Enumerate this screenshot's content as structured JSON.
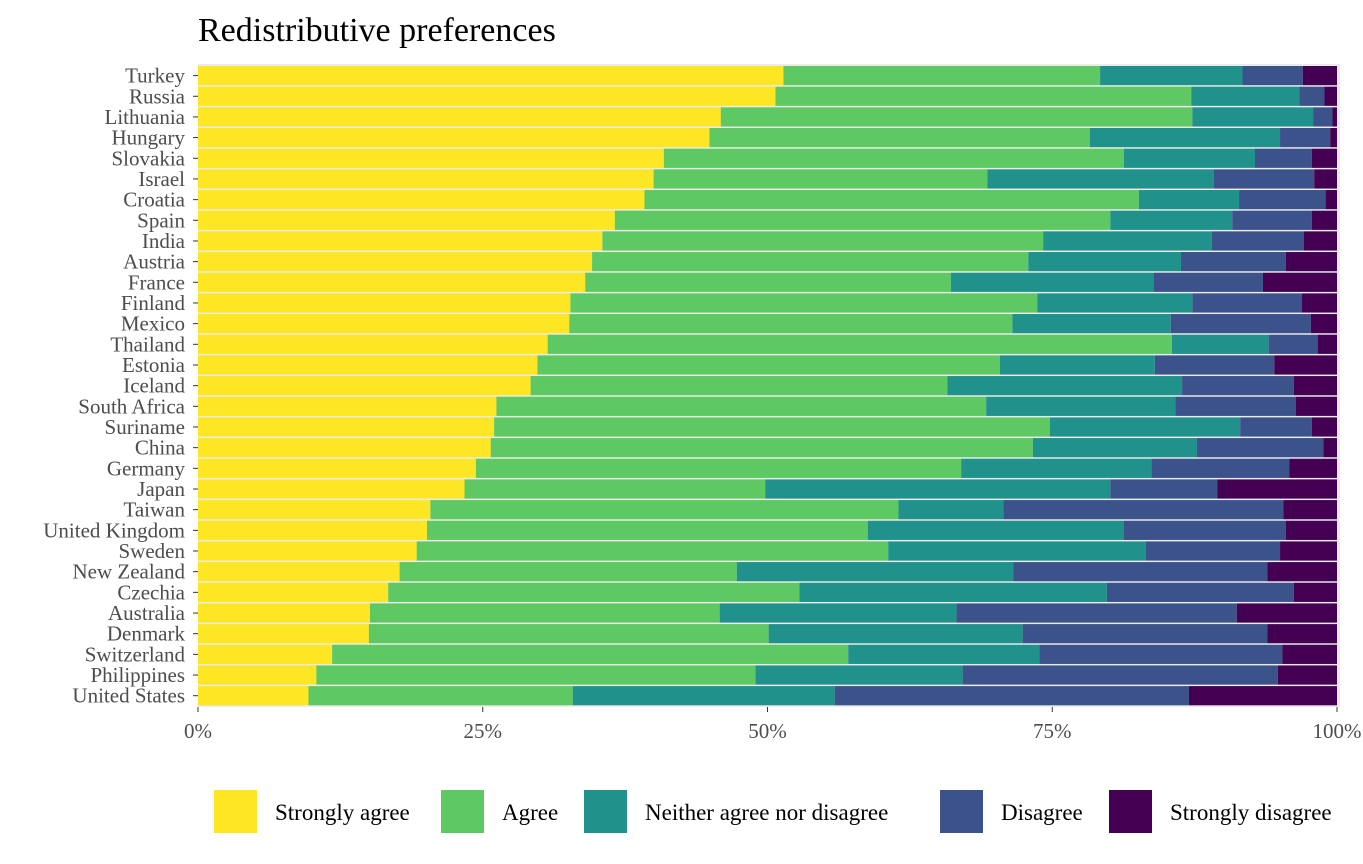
{
  "chart_data": {
    "type": "bar",
    "orientation": "horizontal",
    "stacked": true,
    "normalized": true,
    "title": "Redistributive preferences",
    "xlabel": "",
    "ylabel": "",
    "xlim": [
      0,
      1
    ],
    "x_ticks": [
      {
        "value": 0,
        "label": "0%"
      },
      {
        "value": 0.25,
        "label": "25%"
      },
      {
        "value": 0.5,
        "label": "50%"
      },
      {
        "value": 0.75,
        "label": "75%"
      },
      {
        "value": 1,
        "label": "100%"
      }
    ],
    "legend_position": "bottom",
    "categories": [
      "Turkey",
      "Russia",
      "Lithuania",
      "Hungary",
      "Slovakia",
      "Israel",
      "Croatia",
      "Spain",
      "India",
      "Austria",
      "France",
      "Finland",
      "Mexico",
      "Thailand",
      "Estonia",
      "Iceland",
      "South Africa",
      "Suriname",
      "China",
      "Germany",
      "Japan",
      "Taiwan",
      "United Kingdom",
      "Sweden",
      "New Zealand",
      "Czechia",
      "Australia",
      "Denmark",
      "Switzerland",
      "Philippines",
      "United States"
    ],
    "series": [
      {
        "name": "Strongly agree",
        "color": "#FDE725",
        "values": [
          51.4,
          50.7,
          45.9,
          44.9,
          40.9,
          40.0,
          39.2,
          36.6,
          35.5,
          34.6,
          34.0,
          32.7,
          32.6,
          30.7,
          29.8,
          29.2,
          26.2,
          26.0,
          25.7,
          24.4,
          23.4,
          20.4,
          20.1,
          19.2,
          17.7,
          16.7,
          15.1,
          15.0,
          11.8,
          10.4,
          9.7
        ]
      },
      {
        "name": "Agree",
        "color": "#5EC962",
        "values": [
          27.8,
          36.5,
          41.4,
          33.4,
          40.4,
          29.3,
          43.4,
          43.5,
          38.7,
          38.3,
          32.1,
          41.0,
          38.9,
          54.8,
          40.6,
          36.6,
          43.0,
          48.8,
          47.6,
          42.6,
          26.4,
          41.1,
          38.7,
          41.4,
          29.6,
          36.1,
          30.7,
          35.1,
          45.4,
          38.6,
          23.2
        ]
      },
      {
        "name": "Neither agree nor disagree",
        "color": "#21918C",
        "values": [
          12.5,
          9.5,
          10.6,
          16.7,
          11.5,
          19.9,
          8.8,
          10.7,
          14.8,
          13.4,
          17.8,
          13.6,
          13.9,
          8.5,
          13.6,
          20.6,
          16.6,
          16.7,
          14.4,
          16.7,
          30.3,
          9.2,
          22.5,
          22.6,
          24.3,
          27.0,
          20.8,
          22.3,
          16.8,
          18.2,
          23.0
        ]
      },
      {
        "name": "Disagree",
        "color": "#3B528B",
        "values": [
          5.3,
          2.2,
          1.7,
          4.4,
          5.0,
          8.8,
          7.6,
          7.0,
          8.1,
          9.2,
          9.6,
          9.6,
          12.3,
          4.3,
          10.5,
          9.8,
          10.6,
          6.3,
          11.1,
          12.1,
          9.4,
          24.6,
          14.2,
          11.8,
          22.3,
          16.4,
          24.6,
          21.5,
          21.4,
          27.7,
          31.1
        ]
      },
      {
        "name": "Strongly disagree",
        "color": "#440154",
        "values": [
          3.0,
          1.1,
          0.4,
          0.6,
          2.2,
          2.0,
          1.0,
          2.2,
          2.9,
          4.5,
          6.5,
          3.1,
          2.3,
          1.7,
          5.5,
          3.8,
          3.6,
          2.2,
          1.2,
          4.2,
          10.5,
          4.7,
          4.5,
          5.0,
          6.1,
          3.8,
          8.8,
          6.1,
          4.8,
          5.2,
          13.0
        ]
      }
    ]
  }
}
